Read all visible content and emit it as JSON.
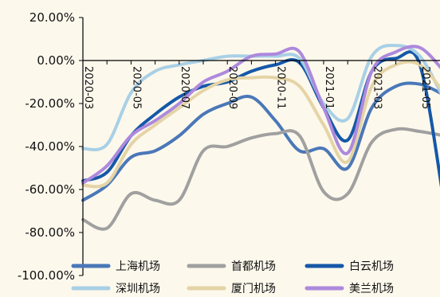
{
  "chart_data": {
    "type": "line",
    "title": "",
    "xlabel": "",
    "ylabel": "",
    "ylim": [
      -100,
      20
    ],
    "y_ticks": [
      "20.00%",
      "0.00%",
      "-20.00%",
      "-40.00%",
      "-60.00%",
      "-80.00%",
      "-100.00%"
    ],
    "y_tick_values": [
      20,
      0,
      -20,
      -40,
      -60,
      -80,
      -100
    ],
    "x_tick_labels": [
      "2020-03",
      "2020-05",
      "2020-07",
      "2020-09",
      "2020-11",
      "2021-01",
      "2021-03",
      "2021-05"
    ],
    "x": [
      "2020-03",
      "2020-04",
      "2020-05",
      "2020-06",
      "2020-07",
      "2020-08",
      "2020-09",
      "2020-10",
      "2020-11",
      "2020-12",
      "2021-01",
      "2021-02",
      "2021-03",
      "2021-04",
      "2021-05",
      "2021-06"
    ],
    "grid": false,
    "legend_position": "bottom",
    "series": [
      {
        "name": "上海机场",
        "color": "#4a78b8",
        "values": [
          -65,
          -58,
          -45,
          -42,
          -35,
          -25,
          -20,
          -17,
          -28,
          -42,
          -41,
          -50,
          -22,
          -12,
          -11,
          -16
        ]
      },
      {
        "name": "首都机场",
        "color": "#a0a0a0",
        "values": [
          -74,
          -78,
          -62,
          -65,
          -65,
          -42,
          -40,
          -36,
          -34,
          -35,
          -61,
          -62,
          -38,
          -32,
          -33,
          -35
        ]
      },
      {
        "name": "白云机场",
        "color": "#1558a8",
        "values": [
          -56,
          -52,
          -35,
          -25,
          -17,
          -12,
          -10,
          -5,
          -2,
          -1,
          -22,
          -37,
          -5,
          1,
          -2,
          -66
        ]
      },
      {
        "name": "深圳机场",
        "color": "#a8d0e6",
        "values": [
          -41,
          -39,
          -15,
          -5,
          -2,
          0,
          2,
          2,
          2,
          1,
          -20,
          -27,
          2,
          7,
          2,
          -18
        ]
      },
      {
        "name": "厦门机场",
        "color": "#e4d4a6",
        "values": [
          -58,
          -57,
          -39,
          -30,
          -22,
          -14,
          -9,
          -8,
          -8,
          -12,
          -30,
          -47,
          -12,
          -2,
          -2,
          -15
        ]
      },
      {
        "name": "美兰机场",
        "color": "#ad89dd",
        "values": [
          -57,
          -49,
          -35,
          -28,
          -20,
          -10,
          -5,
          2,
          3,
          4,
          -22,
          -43,
          -5,
          4,
          6,
          -5
        ]
      }
    ]
  }
}
